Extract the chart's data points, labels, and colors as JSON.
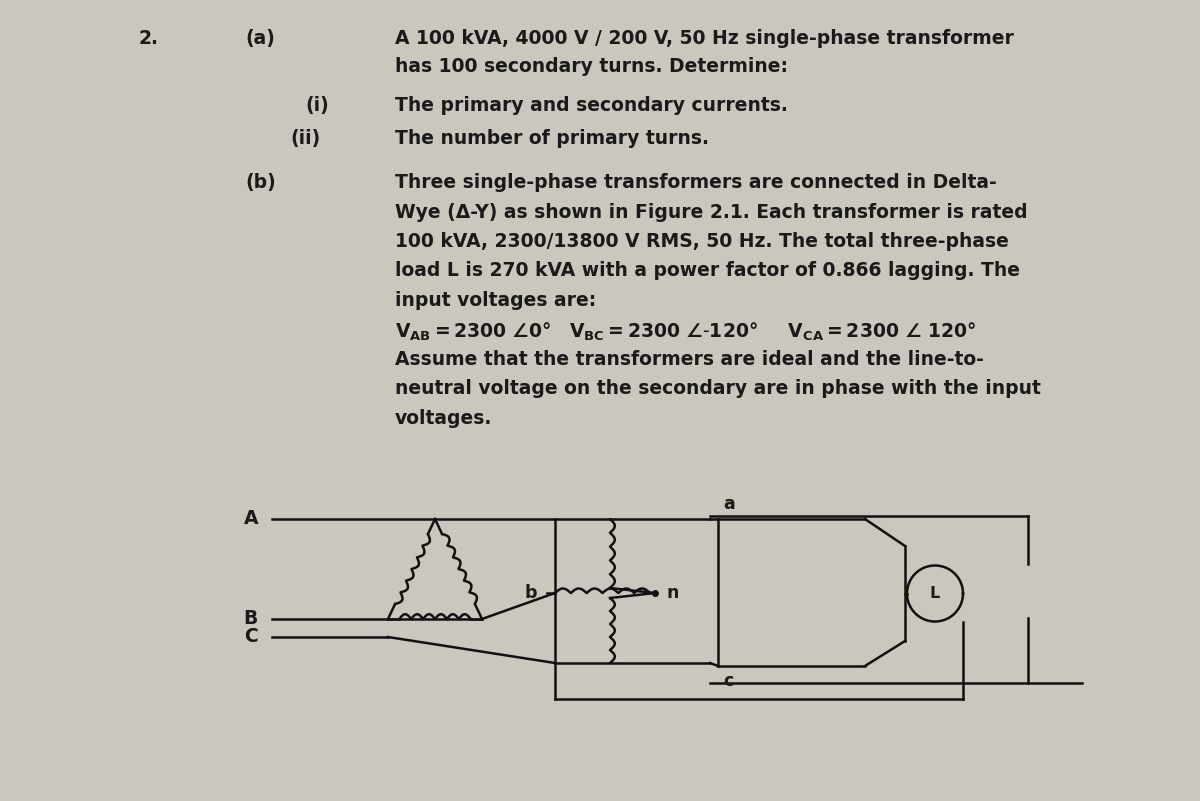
{
  "bg_color": "#cbc6be",
  "text_color": "#1a1a1a",
  "fig_width": 12.0,
  "fig_height": 8.01,
  "number_label": "2.",
  "part_a_label": "(a)",
  "part_a_text1": "A 100 kVA, 4000 V / 200 V, 50 Hz single-phase transformer",
  "part_a_text2": "has 100 secondary turns. Determine:",
  "sub_i_label": "(i)",
  "sub_i_text": "The primary and secondary currents.",
  "sub_ii_label": "(ii)",
  "sub_ii_text": "The number of primary turns.",
  "part_b_label": "(b)",
  "part_b_lines": [
    "Three single-phase transformers are connected in Delta-",
    "Wye (Δ-Y) as shown in Figure 2.1. Each transformer is rated",
    "100 kVA, 2300/13800 V RMS, 50 Hz. The total three-phase",
    "load L is 270 kVA with a power factor of 0.866 lagging. The",
    "input voltages are:"
  ],
  "assume_lines": [
    "Assume that the transformers are ideal and the line-to-",
    "neutral voltage on the secondary are in phase with the input",
    "voltages."
  ],
  "A_label": "A",
  "B_label": "B",
  "C_label": "C",
  "a_label": "a",
  "b_label": "b",
  "c_label": "c",
  "n_label": "n",
  "L_label": "L"
}
